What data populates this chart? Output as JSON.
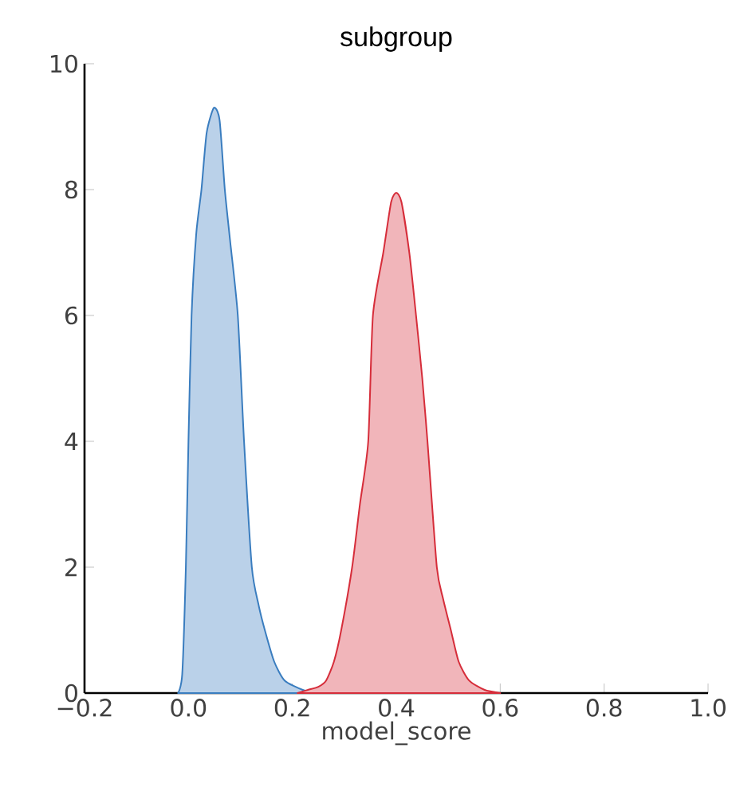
{
  "chart_data": {
    "type": "area",
    "title": "subgroup",
    "xlabel": "model_score",
    "series": [
      {
        "color": "#3a7dbf",
        "x": [
          -0.02,
          -0.012,
          -0.005,
          0.0,
          0.006,
          0.015,
          0.025,
          0.035,
          0.049,
          0.06,
          0.07,
          0.08,
          0.095,
          0.107,
          0.122,
          0.135,
          0.147,
          0.165,
          0.185,
          0.22,
          0.25
        ],
        "values": [
          0,
          0.3,
          2,
          4,
          6,
          7.3,
          8,
          8.9,
          9.3,
          9.1,
          8,
          7.2,
          6,
          4,
          2,
          1.4,
          1,
          0.5,
          0.2,
          0.05,
          0
        ]
      },
      {
        "color": "#d62d3a",
        "x": [
          0.21,
          0.23,
          0.25,
          0.265,
          0.28,
          0.294,
          0.315,
          0.33,
          0.346,
          0.355,
          0.375,
          0.39,
          0.4,
          0.41,
          0.425,
          0.438,
          0.45,
          0.46,
          0.478,
          0.49,
          0.505,
          0.52,
          0.54,
          0.57,
          0.6
        ],
        "values": [
          0,
          0.05,
          0.1,
          0.2,
          0.5,
          1,
          2,
          3,
          4,
          6,
          7,
          7.8,
          7.95,
          7.8,
          7,
          6,
          5,
          4,
          2,
          1.5,
          1,
          0.5,
          0.2,
          0.05,
          0
        ]
      }
    ],
    "xlim": [
      -0.2,
      1.0
    ],
    "ylim": [
      0,
      10
    ],
    "xticks": [
      {
        "value": -0.2,
        "label": "−0.2"
      },
      {
        "value": 0.0,
        "label": "0.0"
      },
      {
        "value": 0.2,
        "label": "0.2"
      },
      {
        "value": 0.4,
        "label": "0.4"
      },
      {
        "value": 0.6,
        "label": "0.6"
      },
      {
        "value": 0.8,
        "label": "0.8"
      },
      {
        "value": 1.0,
        "label": "1.0"
      }
    ],
    "yticks": [
      0,
      2,
      4,
      6,
      8,
      10
    ],
    "grid": false,
    "marker": "none",
    "line_style": "solid"
  }
}
